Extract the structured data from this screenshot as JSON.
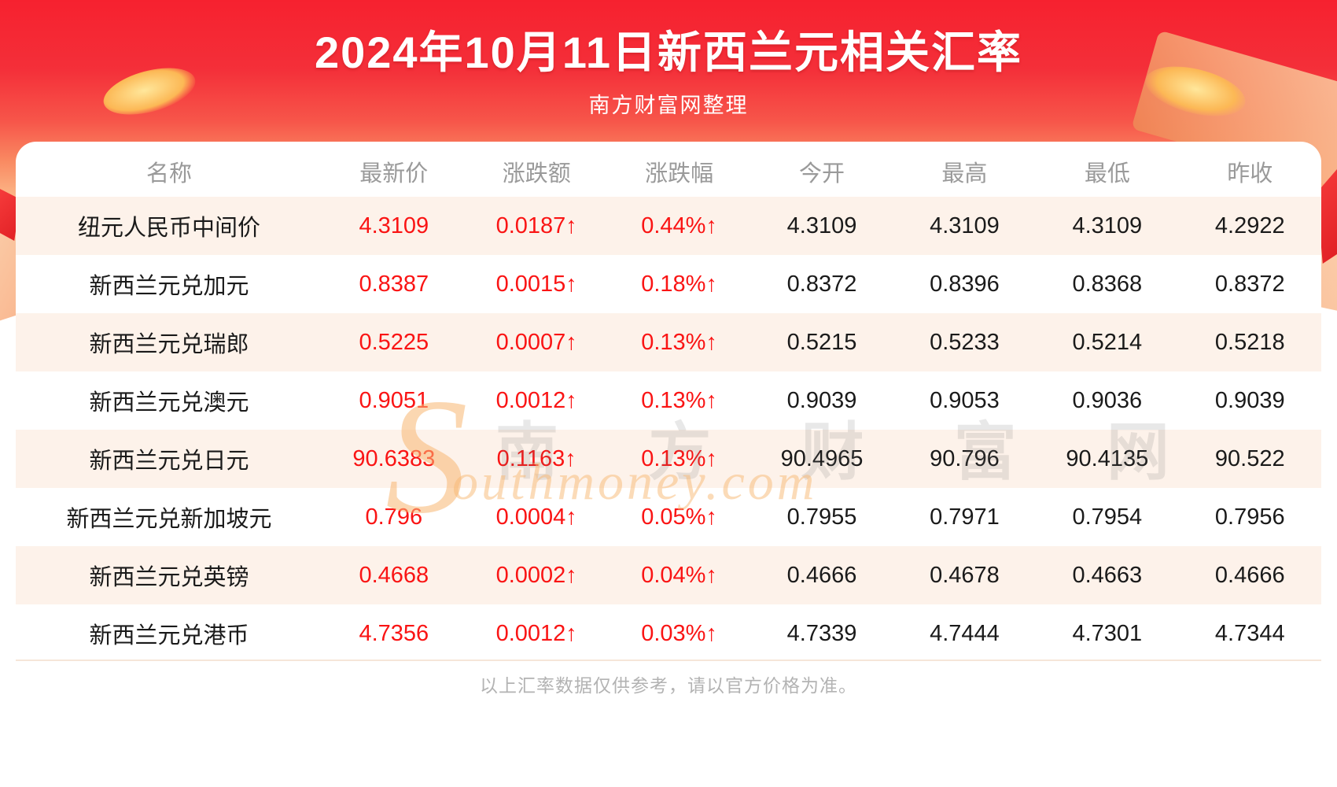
{
  "header": {
    "title": "2024年10月11日新西兰元相关汇率",
    "subtitle": "南方财富网整理"
  },
  "table": {
    "columns": [
      "名称",
      "最新价",
      "涨跌额",
      "涨跌幅",
      "今开",
      "最高",
      "最低",
      "昨收"
    ],
    "rows": [
      {
        "name": "纽元人民币中间价",
        "latest": "4.3109",
        "change": "0.0187↑",
        "change_pct": "0.44%↑",
        "open": "4.3109",
        "high": "4.3109",
        "low": "4.3109",
        "prev_close": "4.2922"
      },
      {
        "name": "新西兰元兑加元",
        "latest": "0.8387",
        "change": "0.0015↑",
        "change_pct": "0.18%↑",
        "open": "0.8372",
        "high": "0.8396",
        "low": "0.8368",
        "prev_close": "0.8372"
      },
      {
        "name": "新西兰元兑瑞郎",
        "latest": "0.5225",
        "change": "0.0007↑",
        "change_pct": "0.13%↑",
        "open": "0.5215",
        "high": "0.5233",
        "low": "0.5214",
        "prev_close": "0.5218"
      },
      {
        "name": "新西兰元兑澳元",
        "latest": "0.9051",
        "change": "0.0012↑",
        "change_pct": "0.13%↑",
        "open": "0.9039",
        "high": "0.9053",
        "low": "0.9036",
        "prev_close": "0.9039"
      },
      {
        "name": "新西兰元兑日元",
        "latest": "90.6383",
        "change": "0.1163↑",
        "change_pct": "0.13%↑",
        "open": "90.4965",
        "high": "90.796",
        "low": "90.4135",
        "prev_close": "90.522"
      },
      {
        "name": "新西兰元兑新加坡元",
        "latest": "0.796",
        "change": "0.0004↑",
        "change_pct": "0.05%↑",
        "open": "0.7955",
        "high": "0.7971",
        "low": "0.7954",
        "prev_close": "0.7956"
      },
      {
        "name": "新西兰元兑英镑",
        "latest": "0.4668",
        "change": "0.0002↑",
        "change_pct": "0.04%↑",
        "open": "0.4666",
        "high": "0.4678",
        "low": "0.4663",
        "prev_close": "0.4666"
      },
      {
        "name": "新西兰元兑港币",
        "latest": "4.7356",
        "change": "0.0012↑",
        "change_pct": "0.03%↑",
        "open": "4.7339",
        "high": "4.7444",
        "low": "4.7301",
        "prev_close": "4.7344"
      }
    ]
  },
  "watermark": {
    "s": "S",
    "cn": "南 方 财 富 网",
    "en": "outhmoney.com"
  },
  "footer": {
    "note": "以上汇率数据仅供参考，请以官方价格为准。"
  },
  "colors": {
    "banner_red": "#f6212f",
    "up_red": "#fa1414",
    "row_alt_bg": "#fdf2ea",
    "header_gray": "#9a9a9a"
  }
}
